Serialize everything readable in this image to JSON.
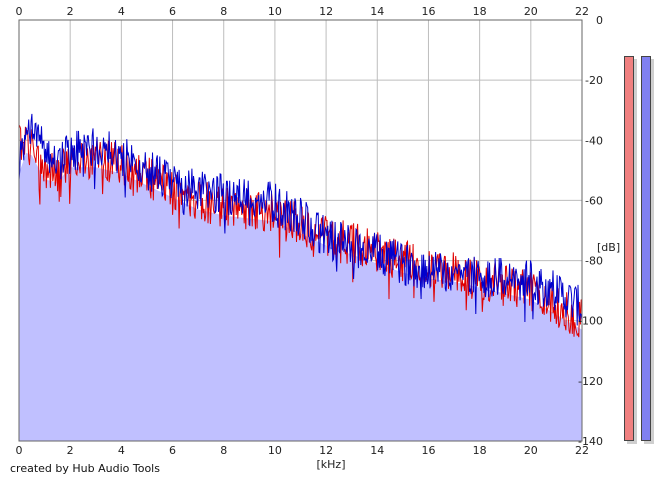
{
  "chart_data": {
    "type": "area",
    "xlabel": "[kHz]",
    "ylabel": "[dB]",
    "xlim": [
      0,
      22
    ],
    "ylim": [
      -140,
      0
    ],
    "x_ticks": [
      "0",
      "2",
      "4",
      "6",
      "8",
      "10",
      "12",
      "14",
      "16",
      "18",
      "20",
      "22"
    ],
    "y_ticks": [
      "0",
      "-20",
      "-40",
      "-60",
      "-80",
      "-100",
      "-120",
      "-140"
    ],
    "grid": true,
    "series": [
      {
        "color": "#e00000",
        "x": [
          0,
          0.5,
          1,
          1.5,
          2,
          3,
          4,
          5,
          6,
          7,
          8,
          9,
          10,
          11,
          12,
          13,
          14,
          15,
          16,
          17,
          18,
          19,
          20,
          21,
          22
        ],
        "values": [
          -40,
          -42,
          -50,
          -51,
          -46,
          -46,
          -48,
          -52,
          -56,
          -60,
          -62,
          -63,
          -64,
          -68,
          -72,
          -74,
          -77,
          -80,
          -82,
          -84,
          -86,
          -88,
          -90,
          -95,
          -100
        ]
      },
      {
        "color": "#0000cc",
        "x": [
          0,
          0.5,
          1,
          1.5,
          2,
          3,
          4,
          5,
          6,
          7,
          8,
          9,
          10,
          11,
          12,
          13,
          14,
          15,
          16,
          17,
          18,
          19,
          20,
          21,
          22
        ],
        "values": [
          -48,
          -36,
          -44,
          -48,
          -44,
          -42,
          -45,
          -50,
          -54,
          -57,
          -58,
          -59,
          -61,
          -66,
          -72,
          -75,
          -78,
          -81,
          -83,
          -84,
          -85,
          -86,
          -87,
          -90,
          -96
        ]
      }
    ],
    "fill_color": "#c0c0ff",
    "meters": [
      {
        "channel": "left",
        "color": "#f08080"
      },
      {
        "channel": "right",
        "color": "#8080f0"
      }
    ]
  },
  "footer": {
    "credit": "created by Hub Audio Tools"
  }
}
